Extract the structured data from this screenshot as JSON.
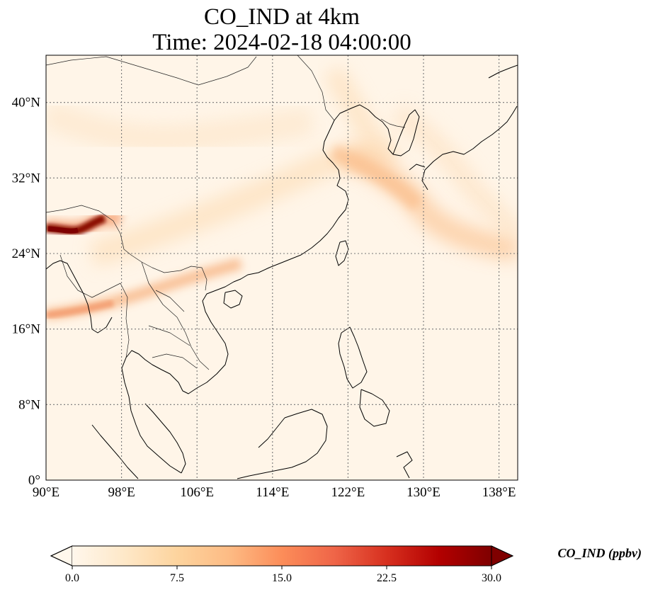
{
  "title": {
    "line1": "CO_IND at 4km",
    "line2": "Time: 2024-02-18 04:00:00"
  },
  "map": {
    "variable": "CO_IND",
    "level": "4km",
    "time": "2024-02-18 04:00:00",
    "extent": {
      "lon": [
        90,
        140
      ],
      "lat": [
        0,
        45
      ]
    },
    "gridlines": true,
    "x_ticks": [
      {
        "value": 90,
        "label": "90°E"
      },
      {
        "value": 98,
        "label": "98°E"
      },
      {
        "value": 106,
        "label": "106°E"
      },
      {
        "value": 114,
        "label": "114°E"
      },
      {
        "value": 122,
        "label": "122°E"
      },
      {
        "value": 130,
        "label": "130°E"
      },
      {
        "value": 138,
        "label": "138°E"
      }
    ],
    "y_ticks": [
      {
        "value": 0,
        "label": "0°"
      },
      {
        "value": 8,
        "label": "8°N"
      },
      {
        "value": 16,
        "label": "16°N"
      },
      {
        "value": 24,
        "label": "24°N"
      },
      {
        "value": 32,
        "label": "32°N"
      },
      {
        "value": 40,
        "label": "40°N"
      }
    ]
  },
  "colorbar": {
    "label": "CO_IND (ppbv)",
    "colormap": "OrRd",
    "min": 0,
    "max": 30,
    "extend": "both",
    "orientation": "horizontal",
    "ticks": [
      {
        "value": 0,
        "label": "0.0"
      },
      {
        "value": 7.5,
        "label": "7.5"
      },
      {
        "value": 15,
        "label": "15.0"
      },
      {
        "value": 22.5,
        "label": "22.5"
      },
      {
        "value": 30,
        "label": "30.0"
      }
    ],
    "colors": [
      "#fff7ec",
      "#fee8c8",
      "#fdd49e",
      "#fdbb84",
      "#fc8d59",
      "#ef6548",
      "#d7301f",
      "#b30000",
      "#7f0000"
    ]
  }
}
